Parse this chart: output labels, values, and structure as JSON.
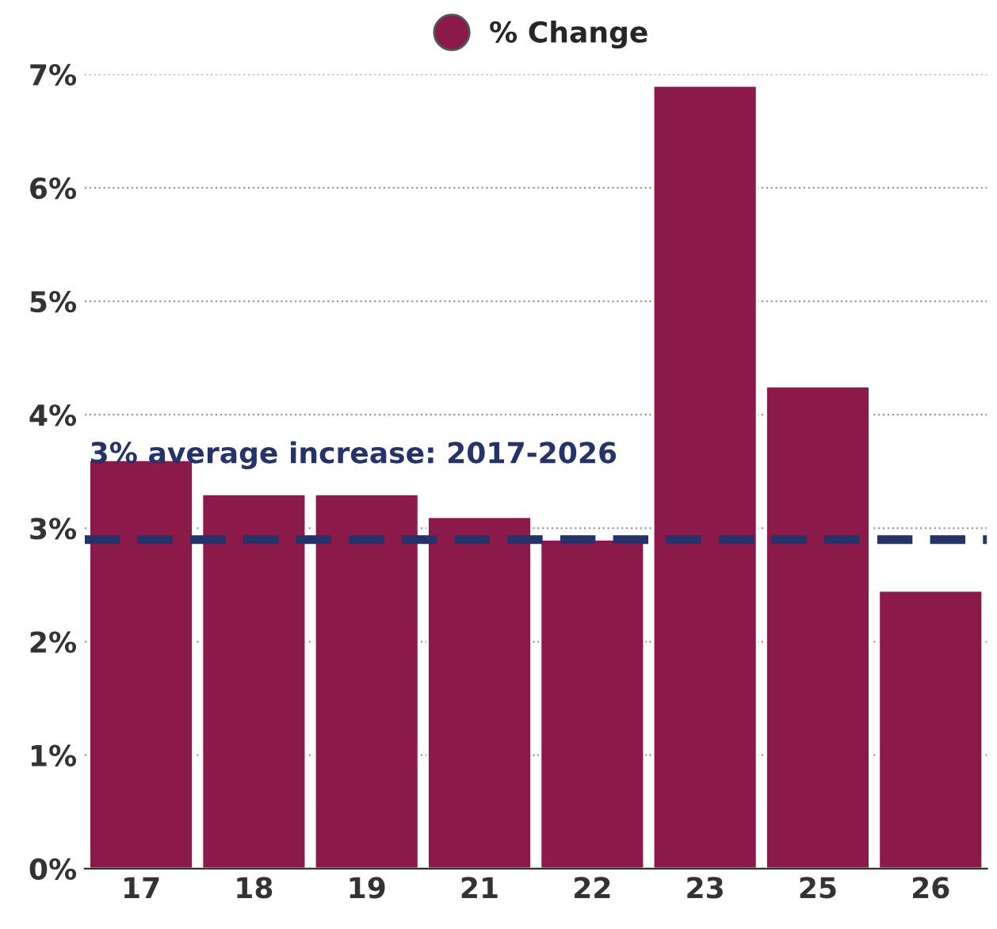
{
  "chart_data": {
    "type": "bar",
    "categories": [
      "17",
      "18",
      "19",
      "21",
      "22",
      "23",
      "25",
      "26"
    ],
    "series": [
      {
        "name": "% Change",
        "color": "#8b1a4a",
        "values": [
          3.6,
          3.3,
          3.3,
          3.1,
          2.9,
          6.9,
          4.25,
          2.45
        ]
      }
    ],
    "ylim": [
      0,
      7
    ],
    "yticks": [
      {
        "value": 0,
        "label": "0%"
      },
      {
        "value": 1,
        "label": "1%"
      },
      {
        "value": 2,
        "label": "2%"
      },
      {
        "value": 3,
        "label": "3%"
      },
      {
        "value": 4,
        "label": "4%"
      },
      {
        "value": 5,
        "label": "5%"
      },
      {
        "value": 6,
        "label": "6%"
      },
      {
        "value": 7,
        "label": "7%"
      }
    ],
    "ref_lines": [
      {
        "axis": "y",
        "value": 2.9,
        "label": "3% average increase: 2017-2026",
        "color": "#26336b",
        "line_style": "dashed"
      }
    ],
    "grid": "y",
    "legend": "top"
  }
}
